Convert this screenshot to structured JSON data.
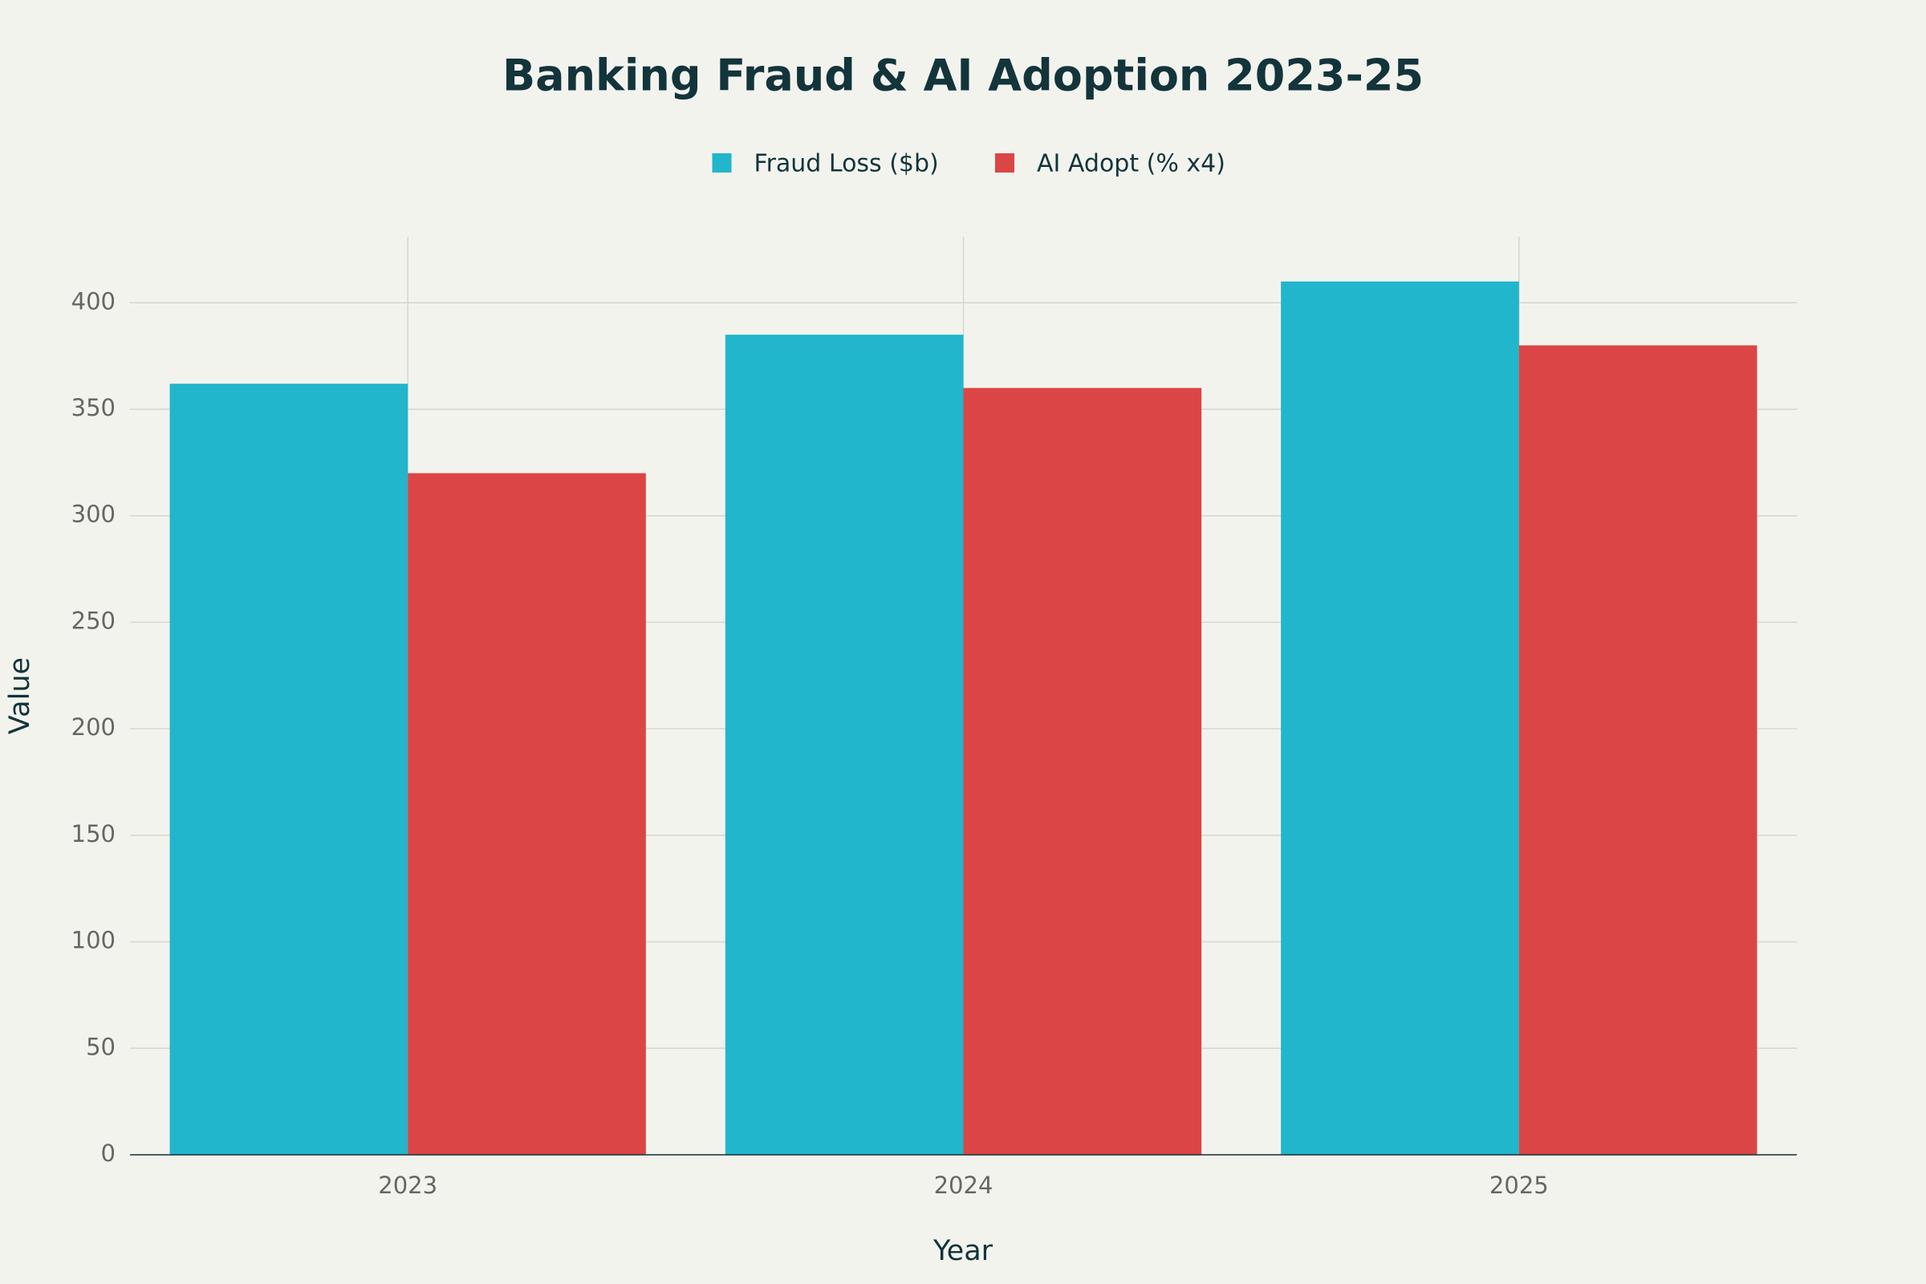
{
  "chart_data": {
    "type": "bar",
    "title": "Banking Fraud & AI Adoption 2023-25",
    "x_label": "Year",
    "y_label": "Value",
    "categories": [
      "2023",
      "2024",
      "2025"
    ],
    "series": [
      {
        "name": "Fraud Loss ($b)",
        "color": "#21b6cb",
        "values": [
          362,
          385,
          410
        ]
      },
      {
        "name": "AI Adopt (% x4)",
        "color": "#db4545",
        "values": [
          320,
          360,
          380
        ]
      }
    ],
    "ylim": [
      0,
      431
    ],
    "yticks": [
      0,
      50,
      100,
      150,
      200,
      250,
      300,
      350,
      400
    ],
    "grid": true,
    "legend": "top"
  }
}
